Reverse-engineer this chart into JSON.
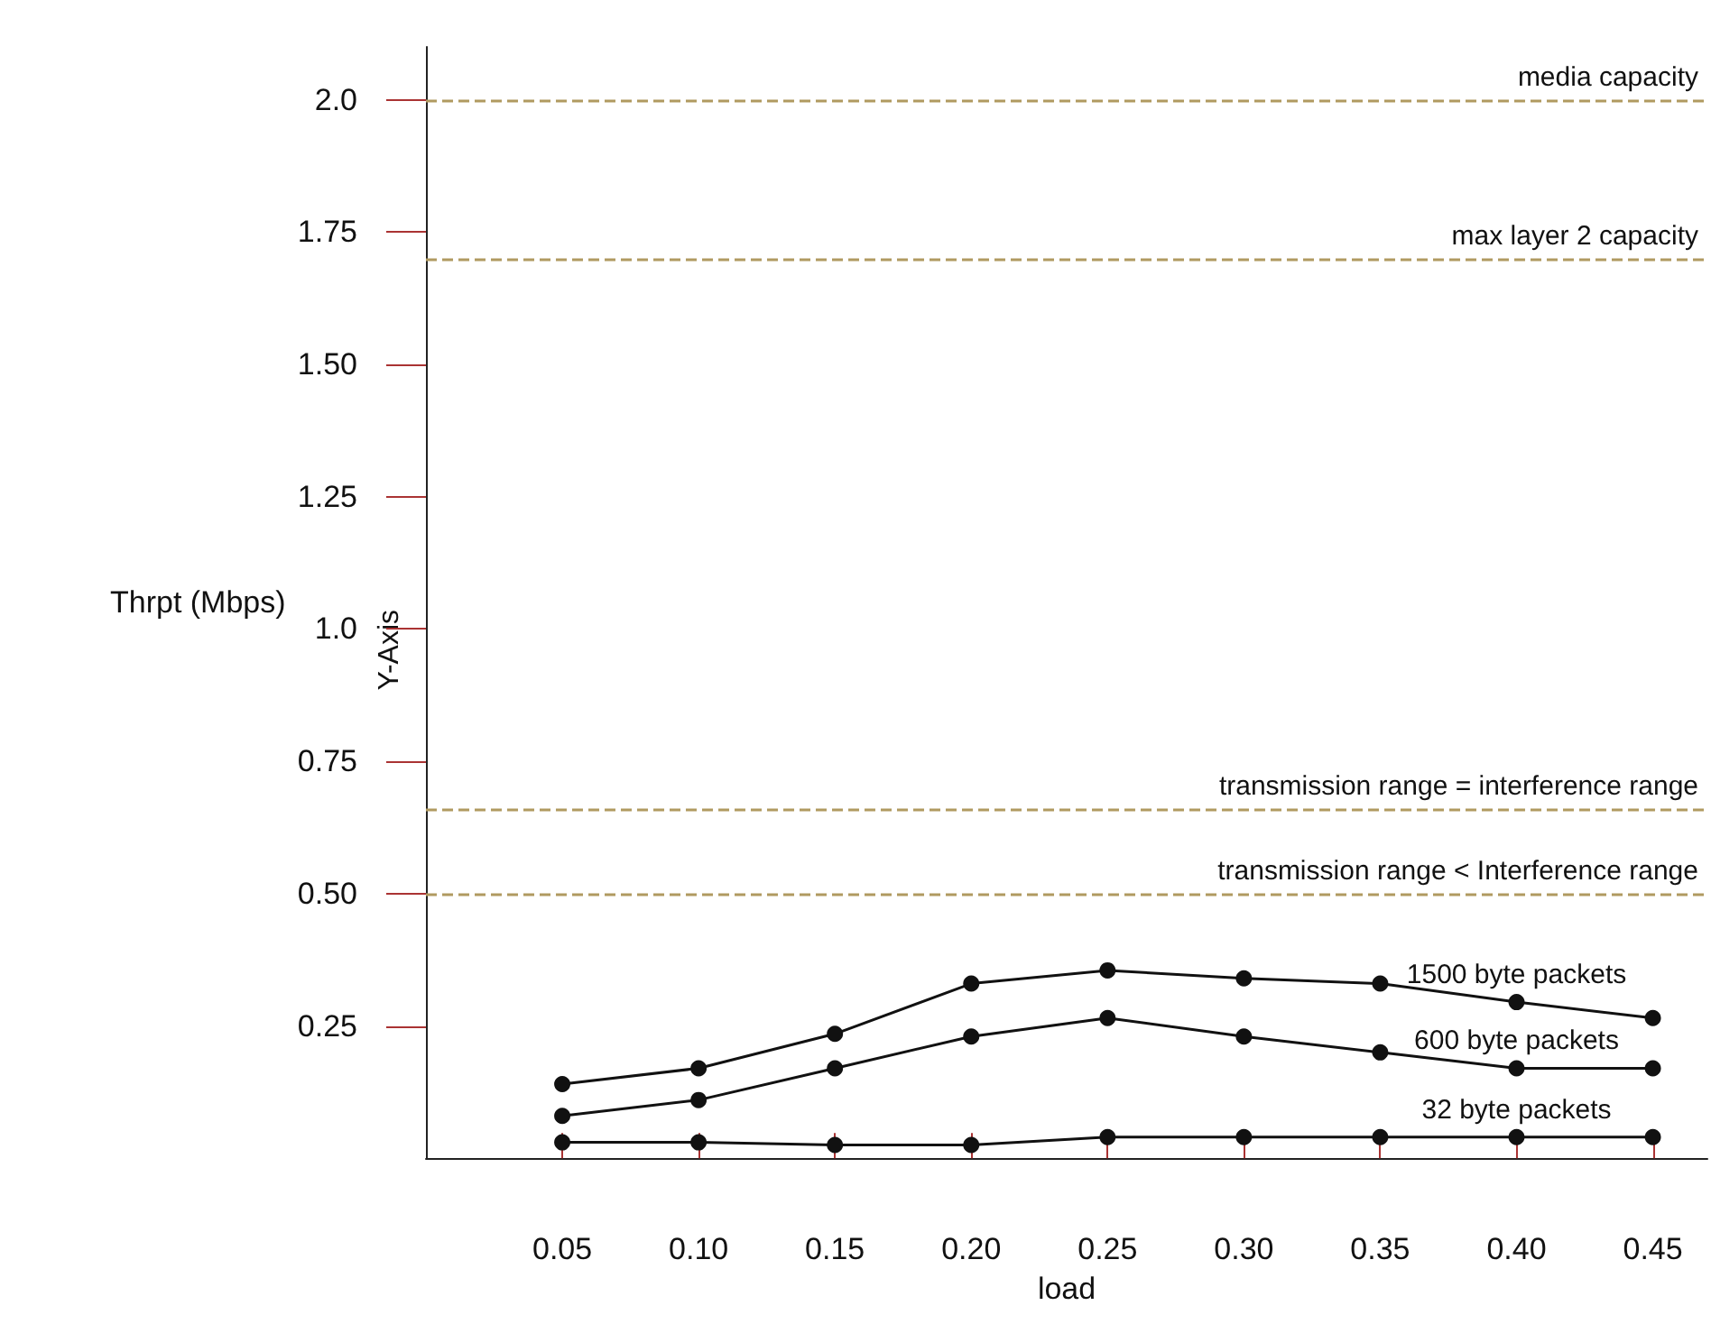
{
  "chart_data": {
    "type": "line",
    "xlabel": "load",
    "ylabel": "Thrpt (Mbps)",
    "annotations": [
      "Y-Axis"
    ],
    "x": [
      0.05,
      0.1,
      0.15,
      0.2,
      0.25,
      0.3,
      0.35,
      0.4,
      0.45
    ],
    "series": [
      {
        "name": "1500 byte packets",
        "color": "#111111",
        "values": [
          0.14,
          0.17,
          0.235,
          0.33,
          0.355,
          0.34,
          0.33,
          0.295,
          0.265
        ]
      },
      {
        "name": "600 byte packets",
        "color": "#111111",
        "values": [
          0.08,
          0.11,
          0.17,
          0.23,
          0.265,
          0.23,
          0.2,
          0.17,
          0.17
        ]
      },
      {
        "name": "32 byte packets",
        "color": "#111111",
        "values": [
          0.03,
          0.03,
          0.025,
          0.025,
          0.04,
          0.04,
          0.04,
          0.04,
          0.04
        ]
      }
    ],
    "xlim": [
      0,
      0.47
    ],
    "xticks": [
      0.05,
      {
        "value": 0.1,
        "label": "0.10"
      },
      0.15,
      {
        "value": 0.2,
        "label": "0.20"
      },
      0.25,
      {
        "value": 0.3,
        "label": "0.30"
      },
      0.35,
      {
        "value": 0.4,
        "label": "0.40"
      },
      0.45
    ],
    "ylim": [
      0,
      2.1
    ],
    "yticks": [
      0.25,
      {
        "value": 0.5,
        "label": "0.50"
      },
      0.75,
      {
        "value": 1,
        "label": "1.0"
      },
      1.25,
      {
        "value": 1.5,
        "label": "1.50"
      },
      1.75,
      {
        "value": 2,
        "label": "2.0"
      }
    ],
    "ref_lines": [
      {
        "axis": "y",
        "value": 2.0,
        "label": "media capacity",
        "color": "#b09a60",
        "line_style": "dashed"
      },
      {
        "axis": "y",
        "value": 1.7,
        "label": "max layer 2 capacity",
        "color": "#b09a60",
        "line_style": "dashed"
      },
      {
        "axis": "y",
        "value": 0.66,
        "label": "transmission range = interference range",
        "color": "#b09a60",
        "line_style": "dashed"
      },
      {
        "axis": "y",
        "value": 0.5,
        "label": "transmission range < Interference range",
        "color": "#b09a60",
        "line_style": "dashed"
      }
    ],
    "grid": false,
    "legend": false,
    "marker": "circle",
    "line_style": "solid"
  }
}
